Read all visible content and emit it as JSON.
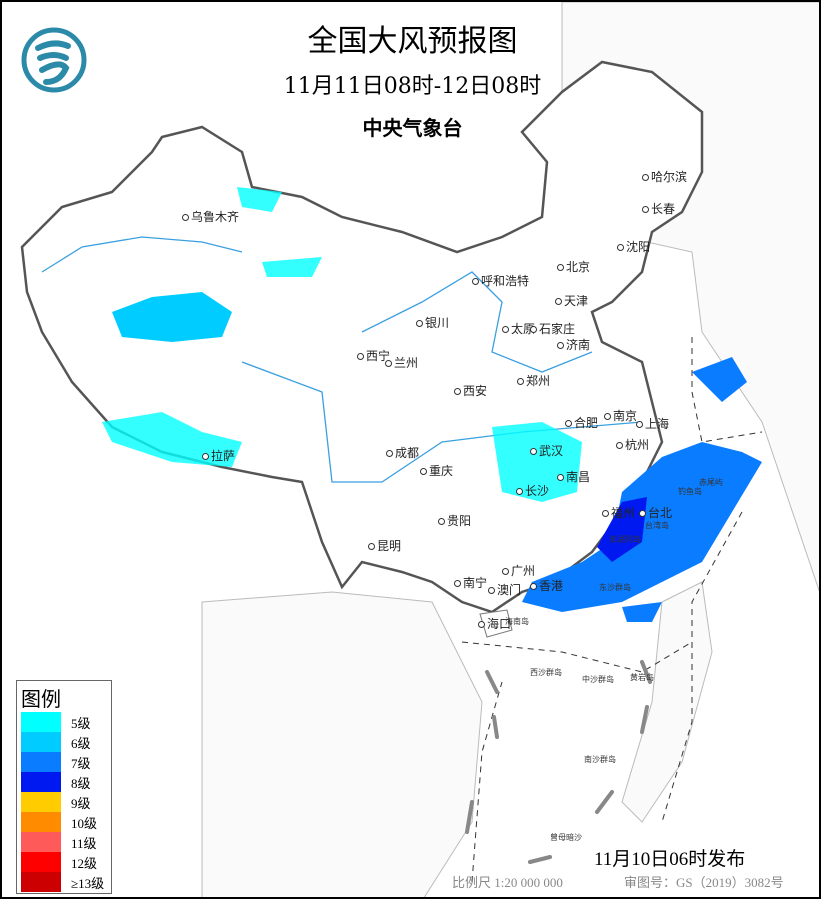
{
  "header": {
    "title": "全国大风预报图",
    "period": "11月11日08时-12日08时",
    "issuer": "中央气象台",
    "logo": "cma-logo"
  },
  "legend": {
    "title": "图例",
    "levels": [
      {
        "label": "5级",
        "color": "#00FFFF"
      },
      {
        "label": "6级",
        "color": "#00CCFF"
      },
      {
        "label": "7级",
        "color": "#0A7CFF"
      },
      {
        "label": "8级",
        "color": "#0019F0"
      },
      {
        "label": "9级",
        "color": "#FFCC00"
      },
      {
        "label": "10级",
        "color": "#FF8C00"
      },
      {
        "label": "11级",
        "color": "#FF5A5A"
      },
      {
        "label": "12级",
        "color": "#FF0000"
      },
      {
        "label": "≥13级",
        "color": "#CC0000"
      }
    ]
  },
  "cities": [
    "乌鲁木齐",
    "哈尔滨",
    "长春",
    "沈阳",
    "北京",
    "天津",
    "呼和浩特",
    "银川",
    "太原",
    "石家庄",
    "济南",
    "西宁",
    "兰州",
    "郑州",
    "西安",
    "合肥",
    "南京",
    "上海",
    "杭州",
    "武汉",
    "成都",
    "重庆",
    "长沙",
    "南昌",
    "拉萨",
    "贵阳",
    "福州",
    "台北",
    "昆明",
    "南宁",
    "广州",
    "澳门",
    "香港",
    "海口"
  ],
  "islands": [
    "海南岛",
    "台湾岛",
    "钓鱼岛",
    "赤尾屿",
    "澎湖列岛",
    "东沙群岛",
    "西沙群岛",
    "中沙群岛",
    "黄岩岛",
    "南沙群岛",
    "曾母暗沙"
  ],
  "footer": {
    "issued": "11月10日06时发布",
    "scale": "比例尺 1:20 000 000",
    "map_number": "审图号：GS（2019）3082号"
  }
}
